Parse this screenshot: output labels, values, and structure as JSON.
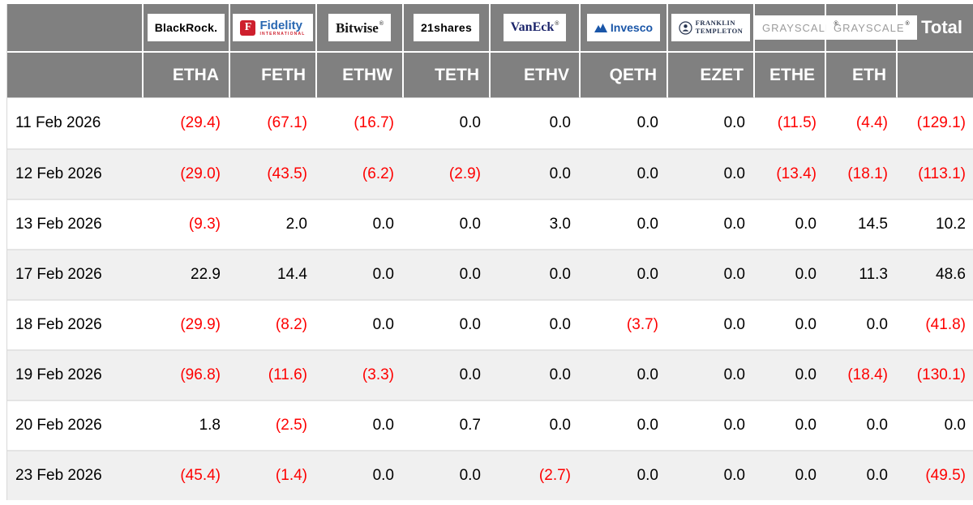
{
  "table": {
    "corner_label": "",
    "total_label": "Total",
    "columns": [
      {
        "provider": "BlackRock",
        "ticker": "ETHA",
        "logo": "blackrock"
      },
      {
        "provider": "Fidelity",
        "ticker": "FETH",
        "logo": "fidelity"
      },
      {
        "provider": "Bitwise",
        "ticker": "ETHW",
        "logo": "bitwise"
      },
      {
        "provider": "21shares",
        "ticker": "TETH",
        "logo": "shares21"
      },
      {
        "provider": "VanEck",
        "ticker": "ETHV",
        "logo": "vaneck"
      },
      {
        "provider": "Invesco",
        "ticker": "QETH",
        "logo": "invesco"
      },
      {
        "provider": "Franklin Templeton",
        "ticker": "EZET",
        "logo": "franklin"
      },
      {
        "provider": "Grayscale",
        "ticker": "ETHE",
        "logo": "grayscale"
      },
      {
        "provider": "Grayscale",
        "ticker": "ETH",
        "logo": "grayscale"
      }
    ],
    "rows": [
      {
        "date": "11 Feb 2026",
        "values": [
          "(29.4)",
          "(67.1)",
          "(16.7)",
          "0.0",
          "0.0",
          "0.0",
          "0.0",
          "(11.5)",
          "(4.4)"
        ],
        "total": "(129.1)"
      },
      {
        "date": "12 Feb 2026",
        "values": [
          "(29.0)",
          "(43.5)",
          "(6.2)",
          "(2.9)",
          "0.0",
          "0.0",
          "0.0",
          "(13.4)",
          "(18.1)"
        ],
        "total": "(113.1)"
      },
      {
        "date": "13 Feb 2026",
        "values": [
          "(9.3)",
          "2.0",
          "0.0",
          "0.0",
          "3.0",
          "0.0",
          "0.0",
          "0.0",
          "14.5"
        ],
        "total": "10.2"
      },
      {
        "date": "17 Feb 2026",
        "values": [
          "22.9",
          "14.4",
          "0.0",
          "0.0",
          "0.0",
          "0.0",
          "0.0",
          "0.0",
          "11.3"
        ],
        "total": "48.6"
      },
      {
        "date": "18 Feb 2026",
        "values": [
          "(29.9)",
          "(8.2)",
          "0.0",
          "0.0",
          "0.0",
          "(3.7)",
          "0.0",
          "0.0",
          "0.0"
        ],
        "total": "(41.8)"
      },
      {
        "date": "19 Feb 2026",
        "values": [
          "(96.8)",
          "(11.6)",
          "(3.3)",
          "0.0",
          "0.0",
          "0.0",
          "0.0",
          "0.0",
          "(18.4)"
        ],
        "total": "(130.1)"
      },
      {
        "date": "20 Feb 2026",
        "values": [
          "1.8",
          "(2.5)",
          "0.0",
          "0.7",
          "0.0",
          "0.0",
          "0.0",
          "0.0",
          "0.0"
        ],
        "total": "0.0"
      },
      {
        "date": "23 Feb 2026",
        "values": [
          "(45.4)",
          "(1.4)",
          "0.0",
          "0.0",
          "(2.7)",
          "0.0",
          "0.0",
          "0.0",
          "0.0"
        ],
        "total": "(49.5)"
      }
    ]
  },
  "logos": {
    "blackrock": {
      "text": "BlackRock."
    },
    "fidelity": {
      "f": "F",
      "name": "Fidelity",
      "sub": "INTERNATIONAL",
      "mark": "™"
    },
    "bitwise": {
      "text": "Bitwise",
      "mark": "®"
    },
    "shares21": {
      "text": "21shares",
      "mark": "˙"
    },
    "vaneck": {
      "text": "VanEck",
      "mark": "®",
      "color": "#1b246b"
    },
    "invesco": {
      "text": "Invesco",
      "color": "#1a56a8"
    },
    "franklin": {
      "line1": "FRANKLIN",
      "line2": "TEMPLETON",
      "color": "#26334f"
    },
    "grayscale": {
      "text": "GRAYSCALE",
      "mark": "®",
      "color": "#9c9c9c"
    }
  },
  "colors": {
    "header_bg": "#808080",
    "row_alt_bg": "#f0f0f0",
    "negative": "#fe0000",
    "positive_text": "#000000",
    "ticker_text": "#ffffff"
  }
}
